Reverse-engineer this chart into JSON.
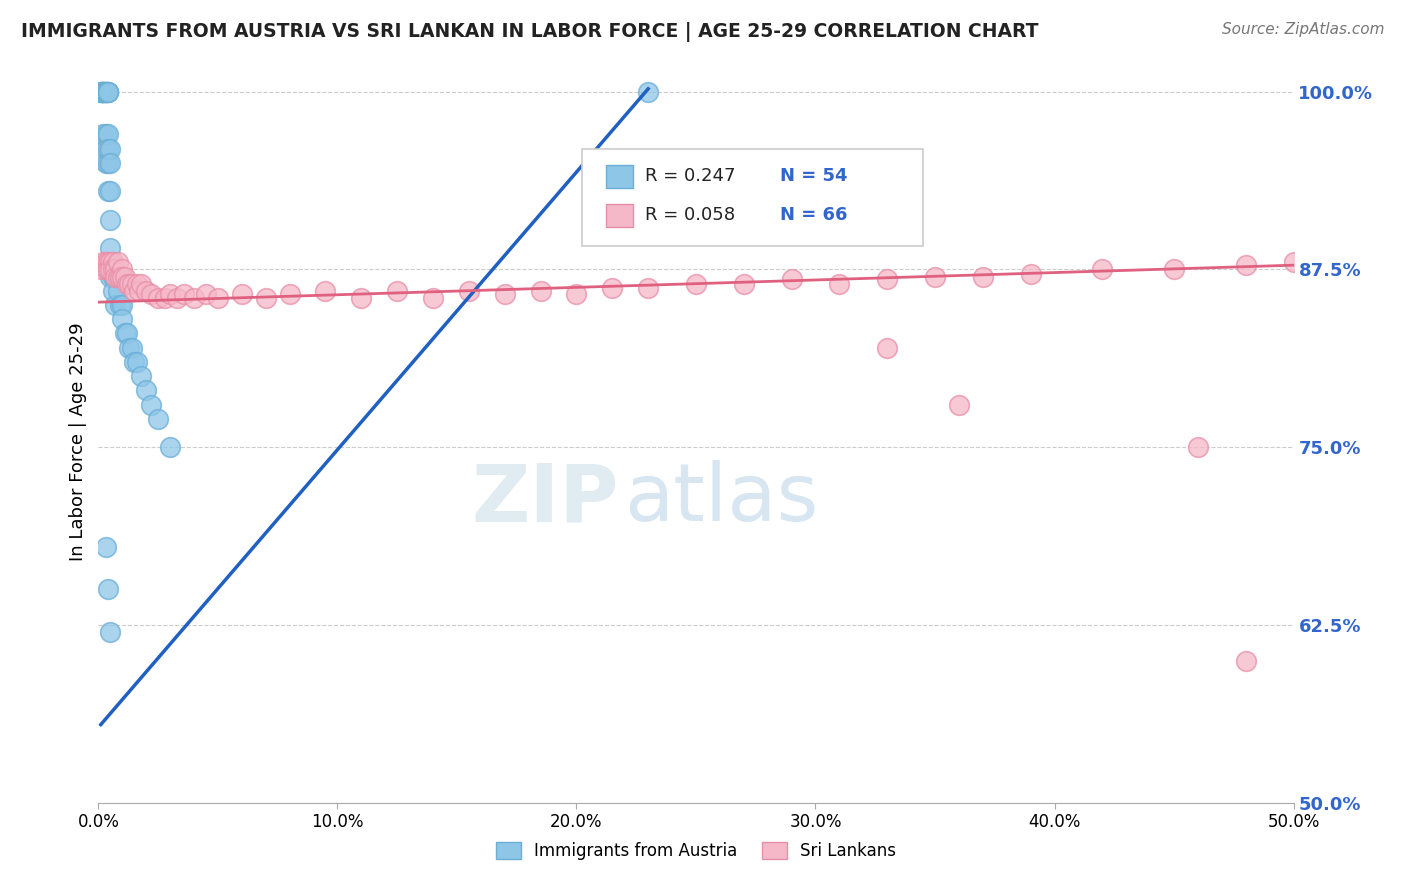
{
  "title": "IMMIGRANTS FROM AUSTRIA VS SRI LANKAN IN LABOR FORCE | AGE 25-29 CORRELATION CHART",
  "source": "Source: ZipAtlas.com",
  "ylabel": "In Labor Force | Age 25-29",
  "watermark_zip": "ZIP",
  "watermark_atlas": "atlas",
  "xlim": [
    0.0,
    0.5
  ],
  "ylim": [
    0.5,
    1.008
  ],
  "xtick_labels": [
    "0.0%",
    "10.0%",
    "20.0%",
    "30.0%",
    "40.0%",
    "50.0%"
  ],
  "xtick_vals": [
    0.0,
    0.1,
    0.2,
    0.3,
    0.4,
    0.5
  ],
  "ytick_labels": [
    "50.0%",
    "62.5%",
    "75.0%",
    "87.5%",
    "100.0%"
  ],
  "ytick_vals": [
    0.5,
    0.625,
    0.75,
    0.875,
    1.0
  ],
  "legend_austria": "Immigrants from Austria",
  "legend_srilankan": "Sri Lankans",
  "austria_R": "R = 0.247",
  "austria_N": "N = 54",
  "srilankan_R": "R = 0.058",
  "srilankan_N": "N = 66",
  "austria_color": "#8ec6e8",
  "srilankan_color": "#f5b8c8",
  "austria_edge": "#6aaed6",
  "srilankan_edge": "#e88fa8",
  "trend_blue": "#2060c0",
  "trend_pink": "#e06080",
  "background": "#ffffff",
  "grid_color": "#cccccc",
  "austria_x": [
    0.001,
    0.001,
    0.001,
    0.002,
    0.002,
    0.002,
    0.002,
    0.002,
    0.002,
    0.002,
    0.003,
    0.003,
    0.003,
    0.003,
    0.003,
    0.003,
    0.003,
    0.004,
    0.004,
    0.004,
    0.004,
    0.004,
    0.004,
    0.004,
    0.005,
    0.005,
    0.005,
    0.005,
    0.005,
    0.005,
    0.006,
    0.006,
    0.006,
    0.007,
    0.007,
    0.008,
    0.009,
    0.01,
    0.01,
    0.011,
    0.012,
    0.013,
    0.014,
    0.015,
    0.016,
    0.018,
    0.02,
    0.022,
    0.025,
    0.03,
    0.003,
    0.004,
    0.005,
    0.23
  ],
  "austria_y": [
    1.0,
    1.0,
    1.0,
    1.0,
    1.0,
    1.0,
    1.0,
    1.0,
    1.0,
    0.97,
    1.0,
    1.0,
    1.0,
    1.0,
    0.97,
    0.96,
    0.95,
    1.0,
    1.0,
    1.0,
    0.97,
    0.96,
    0.95,
    0.93,
    0.96,
    0.95,
    0.93,
    0.91,
    0.89,
    0.87,
    0.88,
    0.87,
    0.86,
    0.87,
    0.85,
    0.86,
    0.85,
    0.85,
    0.84,
    0.83,
    0.83,
    0.82,
    0.82,
    0.81,
    0.81,
    0.8,
    0.79,
    0.78,
    0.77,
    0.75,
    0.68,
    0.65,
    0.62,
    1.0
  ],
  "srilankan_x": [
    0.001,
    0.002,
    0.003,
    0.003,
    0.004,
    0.004,
    0.005,
    0.005,
    0.006,
    0.006,
    0.007,
    0.007,
    0.008,
    0.008,
    0.009,
    0.01,
    0.01,
    0.011,
    0.012,
    0.013,
    0.014,
    0.015,
    0.016,
    0.017,
    0.018,
    0.02,
    0.022,
    0.025,
    0.028,
    0.03,
    0.033,
    0.036,
    0.04,
    0.045,
    0.05,
    0.06,
    0.07,
    0.08,
    0.095,
    0.11,
    0.125,
    0.14,
    0.155,
    0.17,
    0.185,
    0.2,
    0.215,
    0.23,
    0.25,
    0.27,
    0.29,
    0.31,
    0.33,
    0.35,
    0.37,
    0.39,
    0.42,
    0.45,
    0.48,
    0.5,
    0.24,
    0.26,
    0.33,
    0.36,
    0.46,
    0.48
  ],
  "srilankan_y": [
    0.875,
    0.88,
    0.88,
    0.875,
    0.88,
    0.875,
    0.88,
    0.875,
    0.88,
    0.875,
    0.875,
    0.87,
    0.88,
    0.87,
    0.87,
    0.875,
    0.87,
    0.87,
    0.865,
    0.865,
    0.865,
    0.86,
    0.865,
    0.86,
    0.865,
    0.86,
    0.858,
    0.855,
    0.855,
    0.858,
    0.855,
    0.858,
    0.855,
    0.858,
    0.855,
    0.858,
    0.855,
    0.858,
    0.86,
    0.855,
    0.86,
    0.855,
    0.86,
    0.858,
    0.86,
    0.858,
    0.862,
    0.862,
    0.865,
    0.865,
    0.868,
    0.865,
    0.868,
    0.87,
    0.87,
    0.872,
    0.875,
    0.875,
    0.878,
    0.88,
    0.92,
    0.95,
    0.82,
    0.78,
    0.75,
    0.6
  ],
  "blue_trend_x": [
    0.001,
    0.23
  ],
  "blue_trend_y": [
    0.555,
    1.002
  ],
  "pink_trend_x": [
    0.0,
    0.5
  ],
  "pink_trend_y": [
    0.852,
    0.878
  ]
}
